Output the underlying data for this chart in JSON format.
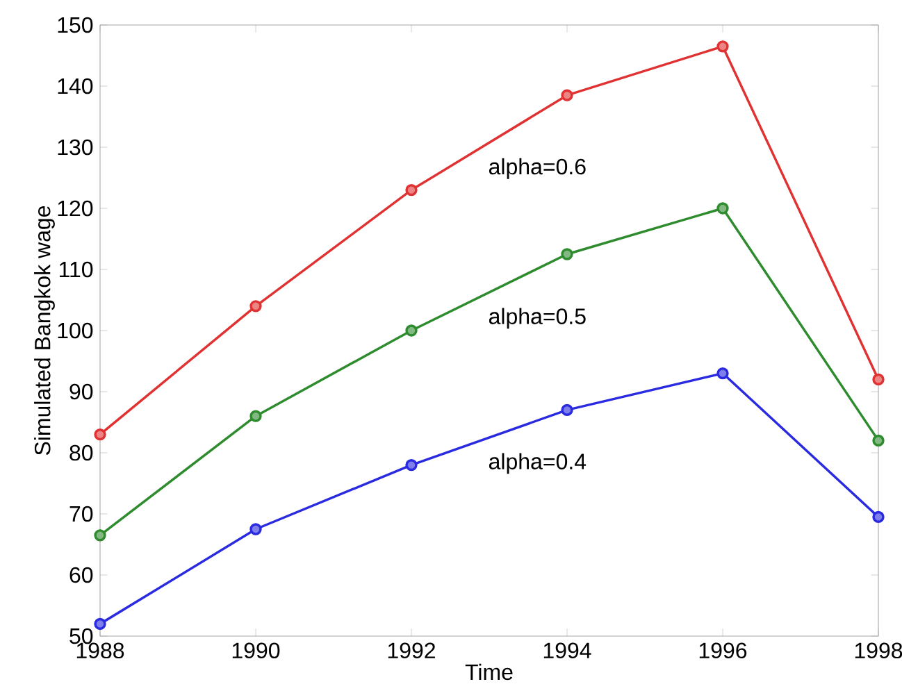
{
  "chart_data": {
    "type": "line",
    "xlabel": "Time",
    "ylabel": "Simulated Bangkok wage",
    "x": [
      1988,
      1990,
      1992,
      1994,
      1996,
      1998
    ],
    "series": [
      {
        "name": "alpha=0.6",
        "color": "#e03232",
        "values": [
          83,
          104,
          123,
          138.5,
          146.5,
          92
        ]
      },
      {
        "name": "alpha=0.5",
        "color": "#2e8b2e",
        "values": [
          66.5,
          86,
          100,
          112.5,
          120,
          82
        ]
      },
      {
        "name": "alpha=0.4",
        "color": "#2a2ae0",
        "values": [
          52,
          67.5,
          78,
          87,
          93,
          69.5
        ]
      }
    ],
    "marker": "circle",
    "line_style": "solid",
    "grid": false,
    "xlim": [
      1988,
      1998
    ],
    "xticks": [
      1988,
      1990,
      1992,
      1994,
      1996,
      1998
    ],
    "ylim": [
      50,
      150
    ],
    "yticks": [
      50,
      60,
      70,
      80,
      90,
      100,
      110,
      120,
      130,
      140,
      150
    ]
  }
}
